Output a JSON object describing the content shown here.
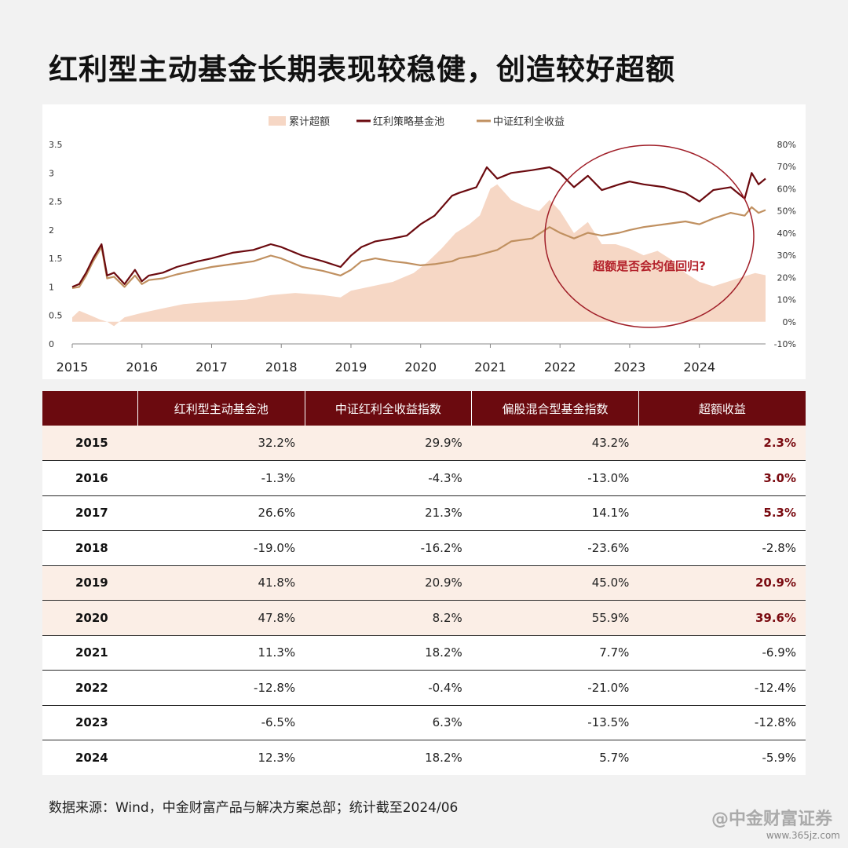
{
  "title": "红利型主动基金长期表现较稳健，创造较好超额",
  "chart_data": {
    "type": "line",
    "legend": [
      "累计超额",
      "红利策略基金池",
      "中证红利全收益"
    ],
    "legend_placement": "top-center",
    "x": [
      "2015",
      "2016",
      "2017",
      "2018",
      "2019",
      "2020",
      "2021",
      "2022",
      "2023",
      "2024"
    ],
    "xlim": [
      2015.0,
      2024.95
    ],
    "left_axis": {
      "ticks": [
        "0",
        "0.5",
        "1",
        "1.5",
        "2",
        "2.5",
        "3",
        "3.5"
      ],
      "ylim": [
        0,
        3.5
      ]
    },
    "right_axis": {
      "ticks": [
        "-10%",
        "0%",
        "10%",
        "20%",
        "30%",
        "40%",
        "50%",
        "60%",
        "70%",
        "80%"
      ],
      "ylim": [
        -10,
        80
      ]
    },
    "series": [
      {
        "name": "红利策略基金池",
        "color": "#6b0a0f",
        "axis": "left",
        "x": [
          2015.0,
          2015.1,
          2015.2,
          2015.3,
          2015.42,
          2015.5,
          2015.6,
          2015.75,
          2015.9,
          2016.0,
          2016.1,
          2016.3,
          2016.5,
          2016.8,
          2017.0,
          2017.3,
          2017.6,
          2017.85,
          2018.0,
          2018.3,
          2018.6,
          2018.85,
          2019.0,
          2019.15,
          2019.35,
          2019.6,
          2019.8,
          2020.0,
          2020.2,
          2020.45,
          2020.55,
          2020.8,
          2020.95,
          2021.1,
          2021.3,
          2021.6,
          2021.85,
          2022.0,
          2022.2,
          2022.4,
          2022.6,
          2022.85,
          2023.0,
          2023.2,
          2023.5,
          2023.8,
          2024.0,
          2024.2,
          2024.45,
          2024.65,
          2024.75,
          2024.85,
          2024.95
        ],
        "y": [
          1.0,
          1.05,
          1.25,
          1.5,
          1.75,
          1.2,
          1.25,
          1.05,
          1.3,
          1.1,
          1.2,
          1.25,
          1.35,
          1.45,
          1.5,
          1.6,
          1.65,
          1.75,
          1.7,
          1.55,
          1.45,
          1.35,
          1.55,
          1.7,
          1.8,
          1.85,
          1.9,
          2.1,
          2.25,
          2.6,
          2.65,
          2.75,
          3.1,
          2.9,
          3.0,
          3.05,
          3.1,
          3.0,
          2.75,
          2.95,
          2.7,
          2.8,
          2.85,
          2.8,
          2.75,
          2.65,
          2.5,
          2.7,
          2.75,
          2.55,
          3.0,
          2.8,
          2.9
        ]
      },
      {
        "name": "中证红利全收益",
        "color": "#c09060",
        "axis": "left",
        "x": [
          2015.0,
          2015.1,
          2015.2,
          2015.3,
          2015.42,
          2015.5,
          2015.6,
          2015.75,
          2015.9,
          2016.0,
          2016.1,
          2016.3,
          2016.5,
          2016.8,
          2017.0,
          2017.3,
          2017.6,
          2017.85,
          2018.0,
          2018.3,
          2018.6,
          2018.85,
          2019.0,
          2019.15,
          2019.35,
          2019.6,
          2019.8,
          2020.0,
          2020.2,
          2020.45,
          2020.55,
          2020.8,
          2020.95,
          2021.1,
          2021.3,
          2021.6,
          2021.85,
          2022.0,
          2022.2,
          2022.4,
          2022.6,
          2022.85,
          2023.0,
          2023.2,
          2023.5,
          2023.8,
          2024.0,
          2024.2,
          2024.45,
          2024.65,
          2024.75,
          2024.85,
          2024.95
        ],
        "y": [
          0.98,
          1.0,
          1.2,
          1.45,
          1.7,
          1.15,
          1.18,
          1.0,
          1.2,
          1.05,
          1.12,
          1.15,
          1.22,
          1.3,
          1.35,
          1.4,
          1.45,
          1.55,
          1.5,
          1.35,
          1.28,
          1.2,
          1.3,
          1.45,
          1.5,
          1.45,
          1.42,
          1.38,
          1.4,
          1.45,
          1.5,
          1.55,
          1.6,
          1.65,
          1.8,
          1.85,
          2.05,
          1.95,
          1.85,
          1.95,
          1.9,
          1.95,
          2.0,
          2.05,
          2.1,
          2.15,
          2.1,
          2.2,
          2.3,
          2.25,
          2.4,
          2.3,
          2.35
        ]
      },
      {
        "name": "累计超额",
        "color": "#f6d7c5",
        "axis": "right",
        "type": "area",
        "x": [
          2015.0,
          2015.1,
          2015.25,
          2015.4,
          2015.5,
          2015.6,
          2015.75,
          2016.0,
          2016.3,
          2016.6,
          2017.0,
          2017.5,
          2017.85,
          2018.2,
          2018.6,
          2018.85,
          2019.0,
          2019.3,
          2019.6,
          2019.9,
          2020.1,
          2020.3,
          2020.5,
          2020.7,
          2020.85,
          2021.0,
          2021.1,
          2021.3,
          2021.5,
          2021.7,
          2021.85,
          2022.0,
          2022.2,
          2022.4,
          2022.6,
          2022.8,
          2023.0,
          2023.2,
          2023.4,
          2023.6,
          2023.8,
          2024.0,
          2024.2,
          2024.4,
          2024.6,
          2024.8,
          2024.95
        ],
        "y": [
          2,
          5,
          3,
          1,
          0,
          -2,
          2,
          4,
          6,
          8,
          9,
          10,
          12,
          13,
          12,
          11,
          14,
          16,
          18,
          22,
          27,
          33,
          40,
          44,
          48,
          60,
          62,
          55,
          52,
          50,
          55,
          50,
          40,
          45,
          35,
          35,
          33,
          30,
          32,
          28,
          22,
          18,
          16,
          18,
          20,
          22,
          21
        ]
      }
    ],
    "annotation": "超额是否会均值回归?"
  },
  "table": {
    "headers": [
      "",
      "红利型主动基金池",
      "中证红利全收益指数",
      "偏股混合型基金指数",
      "超额收益"
    ],
    "rows": [
      {
        "year": "2015",
        "c1": "32.2%",
        "c2": "29.9%",
        "c3": "43.2%",
        "excess": "2.3%",
        "highlight": true,
        "excess_bold": true
      },
      {
        "year": "2016",
        "c1": "-1.3%",
        "c2": "-4.3%",
        "c3": "-13.0%",
        "excess": "3.0%",
        "highlight": false,
        "excess_bold": true
      },
      {
        "year": "2017",
        "c1": "26.6%",
        "c2": "21.3%",
        "c3": "14.1%",
        "excess": "5.3%",
        "highlight": false,
        "excess_bold": true
      },
      {
        "year": "2018",
        "c1": "-19.0%",
        "c2": "-16.2%",
        "c3": "-23.6%",
        "excess": "-2.8%",
        "highlight": false,
        "excess_bold": false
      },
      {
        "year": "2019",
        "c1": "41.8%",
        "c2": "20.9%",
        "c3": "45.0%",
        "excess": "20.9%",
        "highlight": true,
        "excess_bold": true
      },
      {
        "year": "2020",
        "c1": "47.8%",
        "c2": "8.2%",
        "c3": "55.9%",
        "excess": "39.6%",
        "highlight": true,
        "excess_bold": true
      },
      {
        "year": "2021",
        "c1": "11.3%",
        "c2": "18.2%",
        "c3": "7.7%",
        "excess": "-6.9%",
        "highlight": false,
        "excess_bold": false
      },
      {
        "year": "2022",
        "c1": "-12.8%",
        "c2": "-0.4%",
        "c3": "-21.0%",
        "excess": "-12.4%",
        "highlight": false,
        "excess_bold": false
      },
      {
        "year": "2023",
        "c1": "-6.5%",
        "c2": "6.3%",
        "c3": "-13.5%",
        "excess": "-12.8%",
        "highlight": false,
        "excess_bold": false
      },
      {
        "year": "2024",
        "c1": "12.3%",
        "c2": "18.2%",
        "c3": "5.7%",
        "excess": "-5.9%",
        "highlight": false,
        "excess_bold": false
      }
    ]
  },
  "footer": "数据来源：Wind，中金财富产品与解决方案总部；统计截至2024/06",
  "watermark": "@中金财富证券",
  "watermark_url": "www.365jz.com"
}
